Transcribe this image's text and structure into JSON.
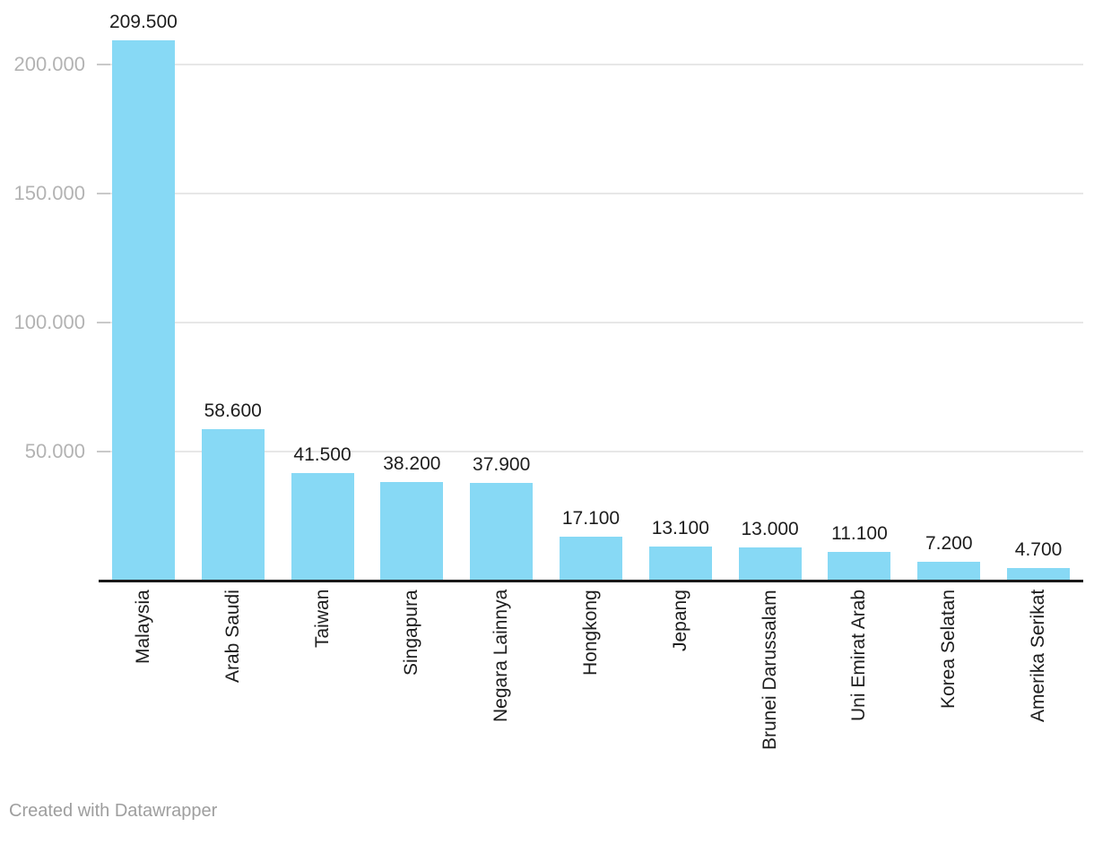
{
  "chart_data": {
    "type": "bar",
    "categories": [
      "Malaysia",
      "Arab Saudi",
      "Taiwan",
      "Singapura",
      "Negara Lainnya",
      "Hongkong",
      "Jepang",
      "Brunei Darussalam",
      "Uni Emirat Arab",
      "Korea Selatan",
      "Amerika Serikat"
    ],
    "values": [
      209500,
      58600,
      41500,
      38200,
      37900,
      17100,
      13100,
      13000,
      11100,
      7200,
      4700
    ],
    "value_labels": [
      "209.500",
      "58.600",
      "41.500",
      "38.200",
      "37.900",
      "17.100",
      "13.100",
      "13.000",
      "11.100",
      "7.200",
      "4.700"
    ],
    "title": "",
    "xlabel": "",
    "ylabel": "",
    "y_axis": {
      "ticks": [
        200000,
        150000,
        100000,
        50000
      ],
      "tick_labels": [
        "200.000",
        "150.000",
        "100.000",
        "50.000"
      ],
      "ylim": [
        0,
        225000
      ],
      "grid": true
    },
    "legend": null,
    "bar_color": "#87d9f5"
  },
  "colors": {
    "bar": "#87d9f5",
    "grid_line": "#e7e7e7",
    "tick_stub": "#c9c9c9",
    "axis_line": "#191919",
    "value_label": "#1d1d1d",
    "category_label": "#1d1d1d",
    "y_tick_label": "#b3b3b3",
    "footer_text": "#9e9e9e",
    "background": "#ffffff"
  },
  "footer": {
    "attribution": "Created with Datawrapper"
  }
}
